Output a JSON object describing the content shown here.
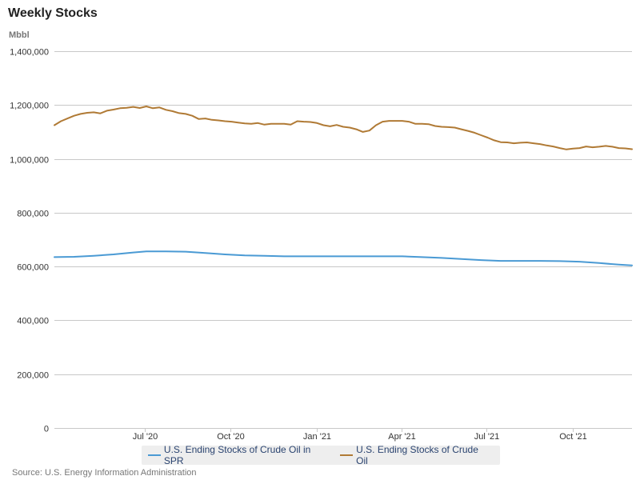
{
  "title": "Weekly Stocks",
  "unit": "Mbbl",
  "source": "Source: U.S. Energy Information Administration",
  "chart_data": {
    "type": "line",
    "title": "Weekly Stocks",
    "ylabel": "Mbbl",
    "ylim": [
      0,
      1400000
    ],
    "yticks": [
      0,
      200000,
      400000,
      600000,
      800000,
      1000000,
      1200000,
      1400000
    ],
    "ytick_labels": [
      "0",
      "200,000",
      "400,000",
      "600,000",
      "800,000",
      "1,000,000",
      "1,200,000",
      "1,400,000"
    ],
    "xlim": [
      "2020-03-27",
      "2021-12-03"
    ],
    "xticks": [
      "2020-07-01",
      "2020-10-01",
      "2021-01-01",
      "2021-04-01",
      "2021-07-01",
      "2021-10-01"
    ],
    "xtick_labels": [
      "Jul '20",
      "Oct '20",
      "Jan '21",
      "Apr '21",
      "Jul '21",
      "Oct '21"
    ],
    "grid": true,
    "legend_position": "bottom-center",
    "series": [
      {
        "name": "U.S. Ending Stocks of Crude Oil in SPR",
        "color": "#4a9ad4",
        "points": [
          [
            "2020-03-27",
            635000
          ],
          [
            "2020-04-17",
            636000
          ],
          [
            "2020-05-08",
            640000
          ],
          [
            "2020-05-29",
            645000
          ],
          [
            "2020-06-19",
            652000
          ],
          [
            "2020-07-03",
            656000
          ],
          [
            "2020-07-24",
            656000
          ],
          [
            "2020-08-14",
            655000
          ],
          [
            "2020-09-04",
            650000
          ],
          [
            "2020-09-25",
            645000
          ],
          [
            "2020-10-16",
            641000
          ],
          [
            "2020-11-06",
            640000
          ],
          [
            "2020-11-27",
            638000
          ],
          [
            "2020-12-18",
            638000
          ],
          [
            "2021-01-08",
            638000
          ],
          [
            "2021-01-29",
            638000
          ],
          [
            "2021-02-19",
            638000
          ],
          [
            "2021-03-12",
            638000
          ],
          [
            "2021-04-02",
            638000
          ],
          [
            "2021-04-23",
            635000
          ],
          [
            "2021-05-14",
            632000
          ],
          [
            "2021-06-04",
            628000
          ],
          [
            "2021-06-25",
            624000
          ],
          [
            "2021-07-16",
            621000
          ],
          [
            "2021-08-06",
            621000
          ],
          [
            "2021-08-27",
            621000
          ],
          [
            "2021-09-17",
            620000
          ],
          [
            "2021-10-08",
            618000
          ],
          [
            "2021-10-29",
            613000
          ],
          [
            "2021-11-19",
            607000
          ],
          [
            "2021-12-03",
            604000
          ]
        ]
      },
      {
        "name": "U.S. Ending Stocks of Crude Oil",
        "color": "#b07a35",
        "points": [
          [
            "2020-03-27",
            1125000
          ],
          [
            "2020-04-03",
            1140000
          ],
          [
            "2020-04-10",
            1150000
          ],
          [
            "2020-04-17",
            1160000
          ],
          [
            "2020-04-24",
            1167000
          ],
          [
            "2020-05-01",
            1171000
          ],
          [
            "2020-05-08",
            1173000
          ],
          [
            "2020-05-15",
            1169000
          ],
          [
            "2020-05-22",
            1179000
          ],
          [
            "2020-05-29",
            1183000
          ],
          [
            "2020-06-05",
            1188000
          ],
          [
            "2020-06-12",
            1190000
          ],
          [
            "2020-06-19",
            1193000
          ],
          [
            "2020-06-26",
            1189000
          ],
          [
            "2020-07-03",
            1195000
          ],
          [
            "2020-07-10",
            1188000
          ],
          [
            "2020-07-17",
            1191000
          ],
          [
            "2020-07-24",
            1182000
          ],
          [
            "2020-07-31",
            1177000
          ],
          [
            "2020-08-07",
            1170000
          ],
          [
            "2020-08-14",
            1167000
          ],
          [
            "2020-08-21",
            1160000
          ],
          [
            "2020-08-28",
            1148000
          ],
          [
            "2020-09-04",
            1150000
          ],
          [
            "2020-09-11",
            1145000
          ],
          [
            "2020-09-18",
            1143000
          ],
          [
            "2020-09-25",
            1140000
          ],
          [
            "2020-10-02",
            1138000
          ],
          [
            "2020-10-09",
            1135000
          ],
          [
            "2020-10-16",
            1132000
          ],
          [
            "2020-10-23",
            1130000
          ],
          [
            "2020-10-30",
            1133000
          ],
          [
            "2020-11-06",
            1127000
          ],
          [
            "2020-11-13",
            1130000
          ],
          [
            "2020-11-20",
            1130000
          ],
          [
            "2020-11-27",
            1130000
          ],
          [
            "2020-12-04",
            1127000
          ],
          [
            "2020-12-11",
            1140000
          ],
          [
            "2020-12-18",
            1138000
          ],
          [
            "2020-12-25",
            1137000
          ],
          [
            "2021-01-01",
            1133000
          ],
          [
            "2021-01-08",
            1125000
          ],
          [
            "2021-01-15",
            1121000
          ],
          [
            "2021-01-22",
            1126000
          ],
          [
            "2021-01-29",
            1119000
          ],
          [
            "2021-02-05",
            1116000
          ],
          [
            "2021-02-12",
            1110000
          ],
          [
            "2021-02-19",
            1100000
          ],
          [
            "2021-02-26",
            1105000
          ],
          [
            "2021-03-05",
            1125000
          ],
          [
            "2021-03-12",
            1138000
          ],
          [
            "2021-03-19",
            1141000
          ],
          [
            "2021-03-26",
            1141000
          ],
          [
            "2021-04-02",
            1141000
          ],
          [
            "2021-04-09",
            1138000
          ],
          [
            "2021-04-16",
            1130000
          ],
          [
            "2021-04-23",
            1130000
          ],
          [
            "2021-04-30",
            1129000
          ],
          [
            "2021-05-07",
            1122000
          ],
          [
            "2021-05-14",
            1119000
          ],
          [
            "2021-05-21",
            1118000
          ],
          [
            "2021-05-28",
            1116000
          ],
          [
            "2021-06-04",
            1110000
          ],
          [
            "2021-06-11",
            1104000
          ],
          [
            "2021-06-18",
            1097000
          ],
          [
            "2021-06-25",
            1088000
          ],
          [
            "2021-07-02",
            1079000
          ],
          [
            "2021-07-09",
            1069000
          ],
          [
            "2021-07-16",
            1062000
          ],
          [
            "2021-07-23",
            1061000
          ],
          [
            "2021-07-30",
            1058000
          ],
          [
            "2021-08-06",
            1060000
          ],
          [
            "2021-08-13",
            1061000
          ],
          [
            "2021-08-20",
            1058000
          ],
          [
            "2021-08-27",
            1055000
          ],
          [
            "2021-09-03",
            1050000
          ],
          [
            "2021-09-10",
            1046000
          ],
          [
            "2021-09-17",
            1040000
          ],
          [
            "2021-09-24",
            1035000
          ],
          [
            "2021-10-01",
            1038000
          ],
          [
            "2021-10-08",
            1040000
          ],
          [
            "2021-10-15",
            1046000
          ],
          [
            "2021-10-22",
            1043000
          ],
          [
            "2021-10-29",
            1045000
          ],
          [
            "2021-11-05",
            1048000
          ],
          [
            "2021-11-12",
            1045000
          ],
          [
            "2021-11-19",
            1040000
          ],
          [
            "2021-11-26",
            1039000
          ],
          [
            "2021-12-03",
            1036000
          ]
        ]
      }
    ]
  }
}
